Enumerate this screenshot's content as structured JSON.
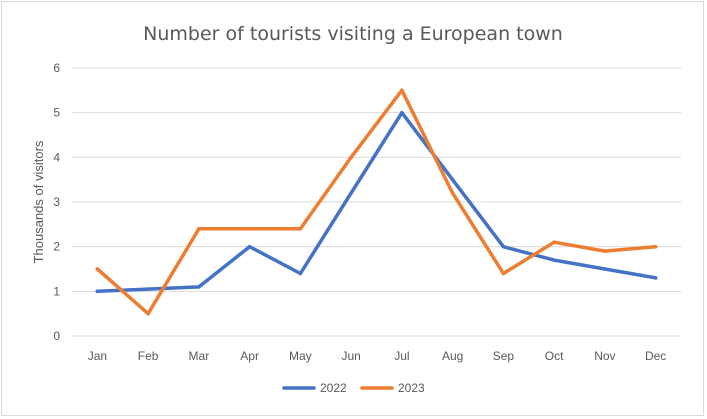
{
  "chart_data": {
    "type": "line",
    "title": "Number of tourists visiting a European town",
    "xlabel": "",
    "ylabel": "Thousands of visitors",
    "categories": [
      "Jan",
      "Feb",
      "Mar",
      "Apr",
      "May",
      "Jun",
      "Jul",
      "Aug",
      "Sep",
      "Oct",
      "Nov",
      "Dec"
    ],
    "ylim": [
      0,
      6
    ],
    "yticks": [
      "0",
      "1",
      "2",
      "3",
      "4",
      "5",
      "6"
    ],
    "grid": true,
    "legend_position": "bottom",
    "series": [
      {
        "name": "2022",
        "color": "#4472c4",
        "values": [
          1.0,
          1.05,
          1.1,
          2.0,
          1.4,
          3.2,
          5.0,
          3.5,
          2.0,
          1.7,
          1.5,
          1.3
        ]
      },
      {
        "name": "2023",
        "color": "#ed7d31",
        "values": [
          1.5,
          0.5,
          2.4,
          2.4,
          2.4,
          4.0,
          5.5,
          3.2,
          1.4,
          2.1,
          1.9,
          2.0
        ]
      }
    ]
  }
}
